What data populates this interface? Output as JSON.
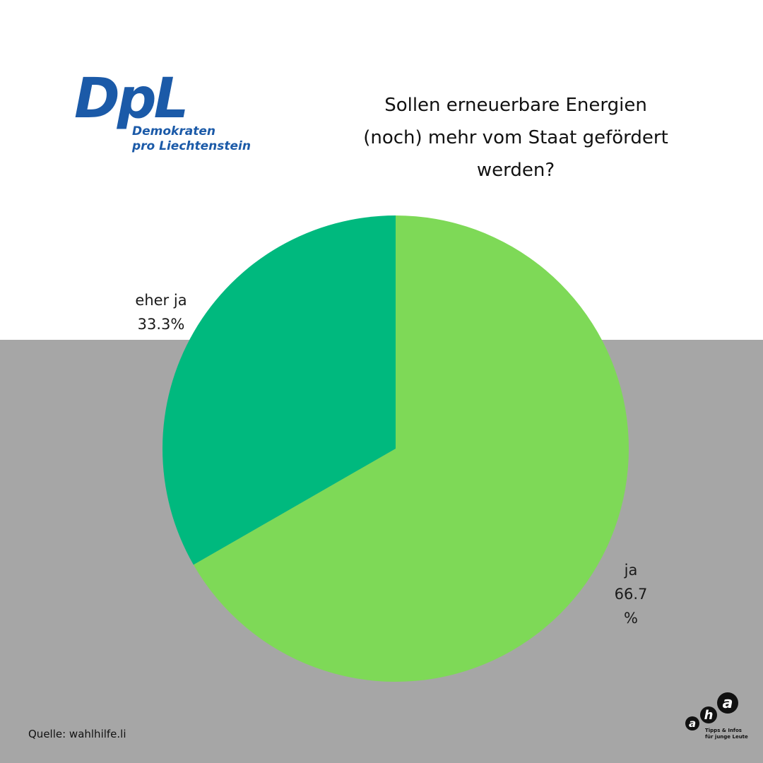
{
  "brand": {
    "logo_mark": "DpL",
    "logo_line1": "Demokraten",
    "logo_line2": "pro Liechtenstein",
    "logo_color": "#1b5aa8"
  },
  "title_lines": [
    "Sollen erneuerbare Energien",
    "(noch) mehr vom Staat gefördert",
    "werden?"
  ],
  "source": "Quelle: wahlhilfe.li",
  "aha": {
    "letters": [
      "a",
      "h",
      "a"
    ],
    "tagline1": "Tipps & Infos",
    "tagline2": "für junge Leute"
  },
  "colors": {
    "background_top": "#ffffff",
    "background_bottom": "#a6a6a6",
    "ja": "#7ed957",
    "eher_ja": "#00b97e"
  },
  "chart_data": {
    "type": "pie",
    "start": "12 o'clock",
    "direction": "clockwise",
    "slices": [
      {
        "category": "ja",
        "value": 66.7,
        "value_label_lines": [
          "66.7",
          "%"
        ],
        "color": "#7ed957"
      },
      {
        "category": "eher ja",
        "value": 33.3,
        "value_label_lines": [
          "33.3%"
        ],
        "color": "#00b97e"
      }
    ]
  }
}
